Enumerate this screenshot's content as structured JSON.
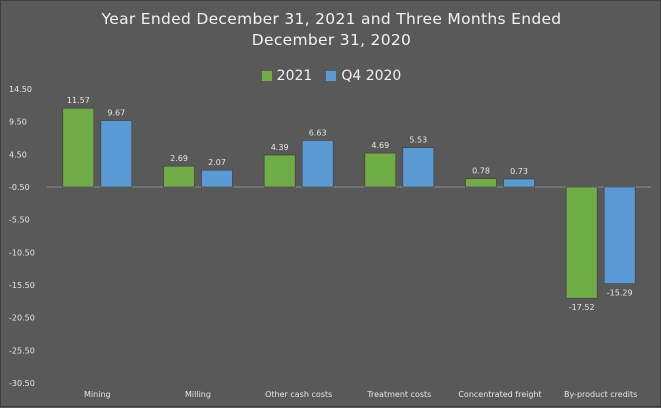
{
  "chart_data": {
    "type": "bar",
    "title": [
      "Year Ended December 31, 2021 and Three Months Ended",
      "December 31, 2020"
    ],
    "categories": [
      "Mining",
      "Milling",
      "Other cash costs",
      "Treatment costs",
      "Concentrated freight",
      "By-product credits"
    ],
    "series": [
      {
        "name": "2021",
        "color": "#70ad47",
        "values": [
          11.57,
          2.69,
          4.39,
          4.69,
          0.78,
          -17.52
        ],
        "labels": [
          "11.57",
          "2.69",
          "4.39",
          "4.69",
          "0.78",
          "-17.52"
        ]
      },
      {
        "name": "Q4 2020",
        "color": "#5b9bd5",
        "values": [
          9.67,
          2.07,
          6.63,
          5.53,
          0.73,
          -15.29
        ],
        "labels": [
          "9.67",
          "2.07",
          "6.63",
          "5.53",
          "0.73",
          "-15.29"
        ]
      }
    ],
    "yticks": [
      "14.50",
      "9.50",
      "4.50",
      "-0.50",
      "-5.50",
      "-10.50",
      "-15.50",
      "-20.50",
      "-25.50",
      "-30.50"
    ],
    "ylim": [
      -30.5,
      14.5
    ],
    "baseline": -0.5,
    "legend": "top-center",
    "grid": false
  }
}
